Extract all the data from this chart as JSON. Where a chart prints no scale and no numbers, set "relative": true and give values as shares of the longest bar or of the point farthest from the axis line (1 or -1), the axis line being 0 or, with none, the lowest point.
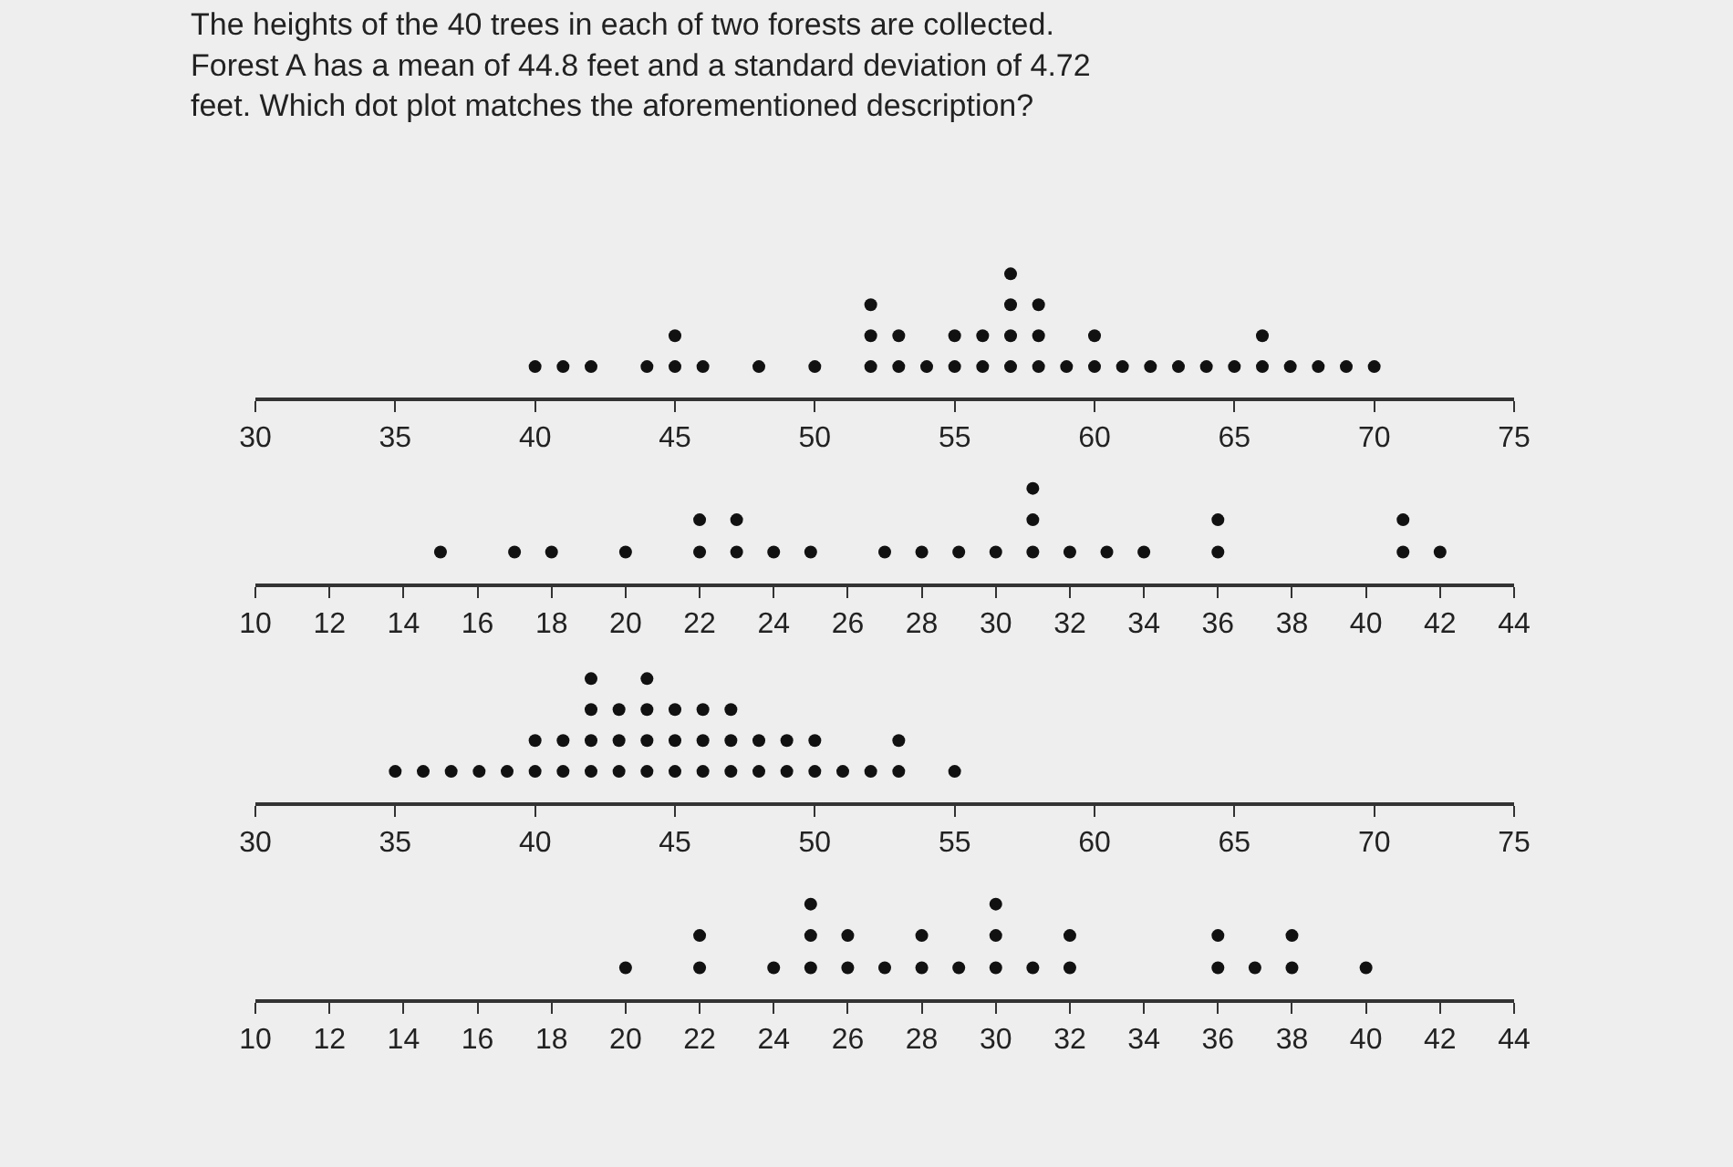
{
  "chart_data": [
    {
      "type": "scatter",
      "title": "The heights of the 40 trees in each of two forests are collected. Forest A has a mean of 44.8 feet and a standard deviation of 4.72 feet. Which dot plot matches the aforementioned description?",
      "relative": true,
      "marker": "circle",
      "grid": false,
      "xlim": [
        30,
        75
      ],
      "xticks": [
        30,
        35,
        40,
        45,
        50,
        55,
        60,
        65,
        70,
        75
      ],
      "series": [
        {
          "color": "#111111",
          "x": [
            40,
            41,
            42,
            44,
            45,
            45,
            46,
            48,
            50,
            52,
            52,
            52,
            53,
            53,
            54,
            55,
            55,
            56,
            56,
            57,
            57,
            57,
            57,
            58,
            58,
            58,
            59,
            60,
            60,
            61,
            62,
            63,
            64,
            65,
            66,
            66,
            67,
            68,
            69,
            70
          ],
          "values": [
            0.25,
            0.25,
            0.25,
            0.25,
            0.25,
            0.5,
            0.25,
            0.25,
            0.25,
            0.25,
            0.5,
            0.75,
            0.25,
            0.5,
            0.25,
            0.25,
            0.5,
            0.25,
            0.5,
            0.25,
            0.5,
            0.75,
            1,
            0.25,
            0.5,
            0.75,
            0.25,
            0.25,
            0.5,
            0.25,
            0.25,
            0.25,
            0.25,
            0.25,
            0.25,
            0.5,
            0.25,
            0.25,
            0.25,
            0.25
          ]
        }
      ]
    },
    {
      "type": "scatter",
      "relative": true,
      "marker": "circle",
      "grid": false,
      "xlim": [
        10,
        44
      ],
      "xticks": [
        10,
        12,
        14,
        16,
        18,
        20,
        22,
        24,
        26,
        28,
        30,
        32,
        34,
        36,
        38,
        40,
        42,
        44
      ],
      "series": [
        {
          "color": "#111111",
          "x": [
            15,
            17,
            18,
            20,
            22,
            22,
            23,
            23,
            24,
            25,
            27,
            28,
            29,
            30,
            31,
            31,
            31,
            32,
            33,
            34,
            36,
            36,
            41,
            41,
            42
          ],
          "values": [
            0.33,
            0.33,
            0.33,
            0.33,
            0.33,
            0.67,
            0.33,
            0.67,
            0.33,
            0.33,
            0.33,
            0.33,
            0.33,
            0.33,
            0.33,
            0.67,
            1,
            0.33,
            0.33,
            0.33,
            0.33,
            0.67,
            0.33,
            0.67,
            0.33
          ]
        }
      ]
    },
    {
      "type": "scatter",
      "relative": true,
      "marker": "circle",
      "grid": false,
      "xlim": [
        30,
        75
      ],
      "xticks": [
        30,
        35,
        40,
        45,
        50,
        55,
        60,
        65,
        70,
        75
      ],
      "series": [
        {
          "color": "#111111",
          "x": [
            35,
            36,
            37,
            38,
            39,
            40,
            40,
            41,
            41,
            42,
            42,
            42,
            42,
            43,
            43,
            43,
            44,
            44,
            44,
            44,
            45,
            45,
            45,
            46,
            46,
            46,
            47,
            47,
            47,
            48,
            48,
            49,
            49,
            50,
            50,
            51,
            52,
            53,
            53,
            55
          ],
          "values": [
            0.25,
            0.25,
            0.25,
            0.25,
            0.25,
            0.25,
            0.5,
            0.25,
            0.5,
            0.25,
            0.5,
            0.75,
            1,
            0.25,
            0.5,
            0.75,
            0.25,
            0.5,
            0.75,
            1,
            0.25,
            0.5,
            0.75,
            0.25,
            0.5,
            0.75,
            0.25,
            0.5,
            0.75,
            0.25,
            0.5,
            0.25,
            0.5,
            0.25,
            0.5,
            0.25,
            0.25,
            0.25,
            0.5,
            0.25
          ]
        }
      ]
    },
    {
      "type": "scatter",
      "relative": true,
      "marker": "circle",
      "grid": false,
      "xlim": [
        10,
        44
      ],
      "xticks": [
        10,
        12,
        14,
        16,
        18,
        20,
        22,
        24,
        26,
        28,
        30,
        32,
        34,
        36,
        38,
        40,
        42,
        44
      ],
      "series": [
        {
          "color": "#111111",
          "x": [
            20,
            22,
            22,
            24,
            25,
            25,
            25,
            26,
            26,
            27,
            28,
            28,
            29,
            30,
            30,
            30,
            31,
            32,
            32,
            36,
            36,
            37,
            38,
            38,
            40
          ],
          "values": [
            0.33,
            0.33,
            0.67,
            0.33,
            0.33,
            0.67,
            1,
            0.33,
            0.67,
            0.33,
            0.33,
            0.67,
            0.33,
            0.33,
            0.67,
            1,
            0.33,
            0.33,
            0.67,
            0.33,
            0.67,
            0.33,
            0.33,
            0.67,
            0.33
          ]
        }
      ]
    }
  ]
}
